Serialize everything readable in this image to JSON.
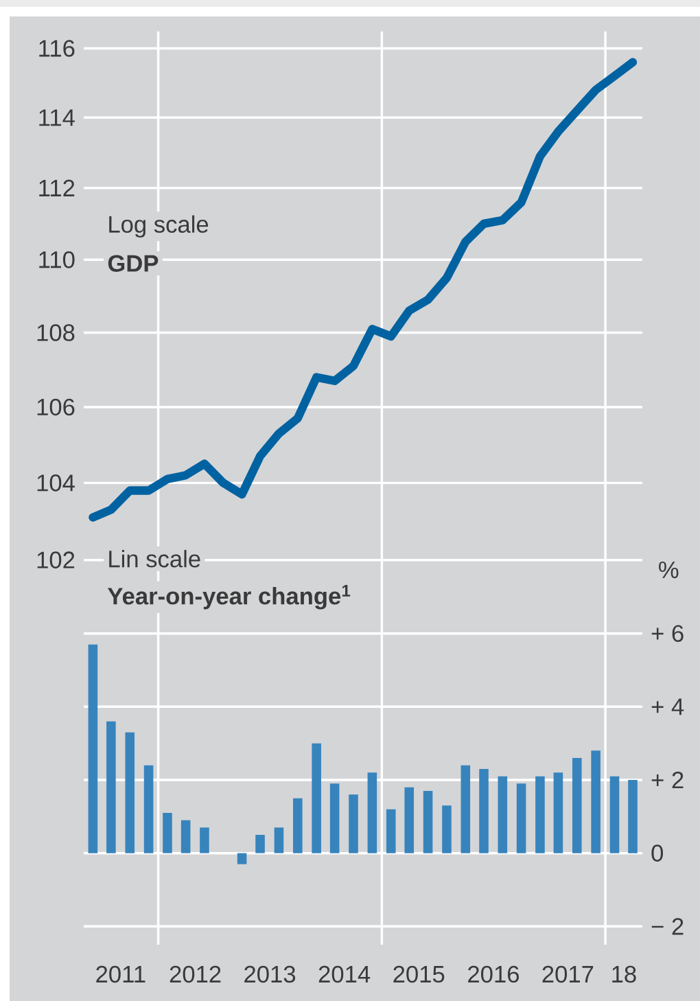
{
  "chart_data": [
    {
      "type": "line",
      "subtitle": "Log scale",
      "title": "GDP",
      "color": "#0062a1",
      "log": true,
      "grid": "y",
      "tick_labels": "y",
      "x": [
        "2011-02-15",
        "2011-05-15",
        "2011-08-15",
        "2011-11-15",
        "2012-02-15",
        "2012-05-15",
        "2012-08-15",
        "2012-11-15",
        "2013-02-15",
        "2013-05-15",
        "2013-08-15",
        "2013-11-15",
        "2014-02-15",
        "2014-05-15",
        "2014-08-15",
        "2014-11-15",
        "2015-02-15",
        "2015-05-15",
        "2015-08-15",
        "2015-11-15",
        "2016-02-15",
        "2016-05-15",
        "2016-08-15",
        "2016-11-15",
        "2017-02-15",
        "2017-05-15",
        "2017-08-15",
        "2017-11-15",
        "2018-02-15",
        "2018-05-15"
      ],
      "values": [
        103.1,
        103.3,
        103.8,
        103.8,
        104.1,
        104.2,
        104.5,
        104.0,
        103.7,
        104.7,
        105.3,
        105.7,
        106.8,
        106.7,
        107.1,
        108.1,
        107.9,
        108.6,
        108.9,
        109.5,
        110.5,
        111.0,
        111.1,
        111.6,
        112.9,
        113.6,
        114.2,
        114.8,
        115.2,
        115.6
      ],
      "xlim": [
        "2011-01-01",
        "2018-07-01"
      ],
      "ylim": [
        102,
        116.5
      ],
      "yticks": [
        102,
        104,
        106,
        108,
        110,
        112,
        114,
        116
      ],
      "ref_lines": [
        {
          "axis": "x",
          "value": "2012-01-01",
          "color": "#ffffff"
        },
        {
          "axis": "x",
          "value": "2015-01-01",
          "color": "#ffffff"
        },
        {
          "axis": "x",
          "value": "2018-01-01",
          "color": "#ffffff"
        }
      ]
    },
    {
      "type": "bar",
      "subtitle": "Lin scale",
      "title": "Year-on-year change$^{1}$",
      "ylabel": "%",
      "color": "#3784bd",
      "grid": "y",
      "x": [
        "2011-02-15",
        "2011-05-15",
        "2011-08-15",
        "2011-11-15",
        "2012-02-15",
        "2012-05-15",
        "2012-08-15",
        "2012-11-15",
        "2013-02-15",
        "2013-05-15",
        "2013-08-15",
        "2013-11-15",
        "2014-02-15",
        "2014-05-15",
        "2014-08-15",
        "2014-11-15",
        "2015-02-15",
        "2015-05-15",
        "2015-08-15",
        "2015-11-15",
        "2016-02-15",
        "2016-05-15",
        "2016-08-15",
        "2016-11-15",
        "2017-02-15",
        "2017-05-15",
        "2017-08-15",
        "2017-11-15",
        "2018-02-15",
        "2018-05-15"
      ],
      "values": [
        5.7,
        3.6,
        3.3,
        2.4,
        1.1,
        0.9,
        0.7,
        0,
        -0.3,
        0.5,
        0.7,
        1.5,
        3.0,
        1.9,
        1.6,
        2.2,
        1.2,
        1.8,
        1.7,
        1.3,
        2.4,
        2.3,
        2.1,
        1.9,
        2.1,
        2.2,
        2.6,
        2.8,
        2.1,
        2.0
      ],
      "xlim": [
        "2011-01-01",
        "2018-07-01"
      ],
      "ylim": [
        -2.5,
        8
      ],
      "yticks": [
        {
          "value": -2,
          "label": "− 2"
        },
        0,
        {
          "value": 2,
          "label": "+ 2"
        },
        {
          "value": 4,
          "label": "+ 4"
        },
        {
          "value": 6,
          "label": "+ 6"
        }
      ],
      "xticks": [
        {
          "value": "2011-07-01",
          "label": "2011"
        },
        {
          "value": "2012-07-01",
          "label": "2012"
        },
        {
          "value": "2013-07-01",
          "label": "2013"
        },
        {
          "value": "2014-07-01",
          "label": "2014"
        },
        {
          "value": "2015-07-01",
          "label": "2015"
        },
        {
          "value": "2016-07-01",
          "label": "2016"
        },
        {
          "value": "2017-07-01",
          "label": "2017"
        },
        {
          "value": "2018-04-01",
          "label": "18"
        }
      ],
      "ref_lines": [
        {
          "axis": "x",
          "value": "2012-01-01",
          "color": "#ffffff"
        },
        {
          "axis": "x",
          "value": "2015-01-01",
          "color": "#ffffff"
        },
        {
          "axis": "x",
          "value": "2018-01-01",
          "color": "#ffffff"
        }
      ]
    }
  ]
}
